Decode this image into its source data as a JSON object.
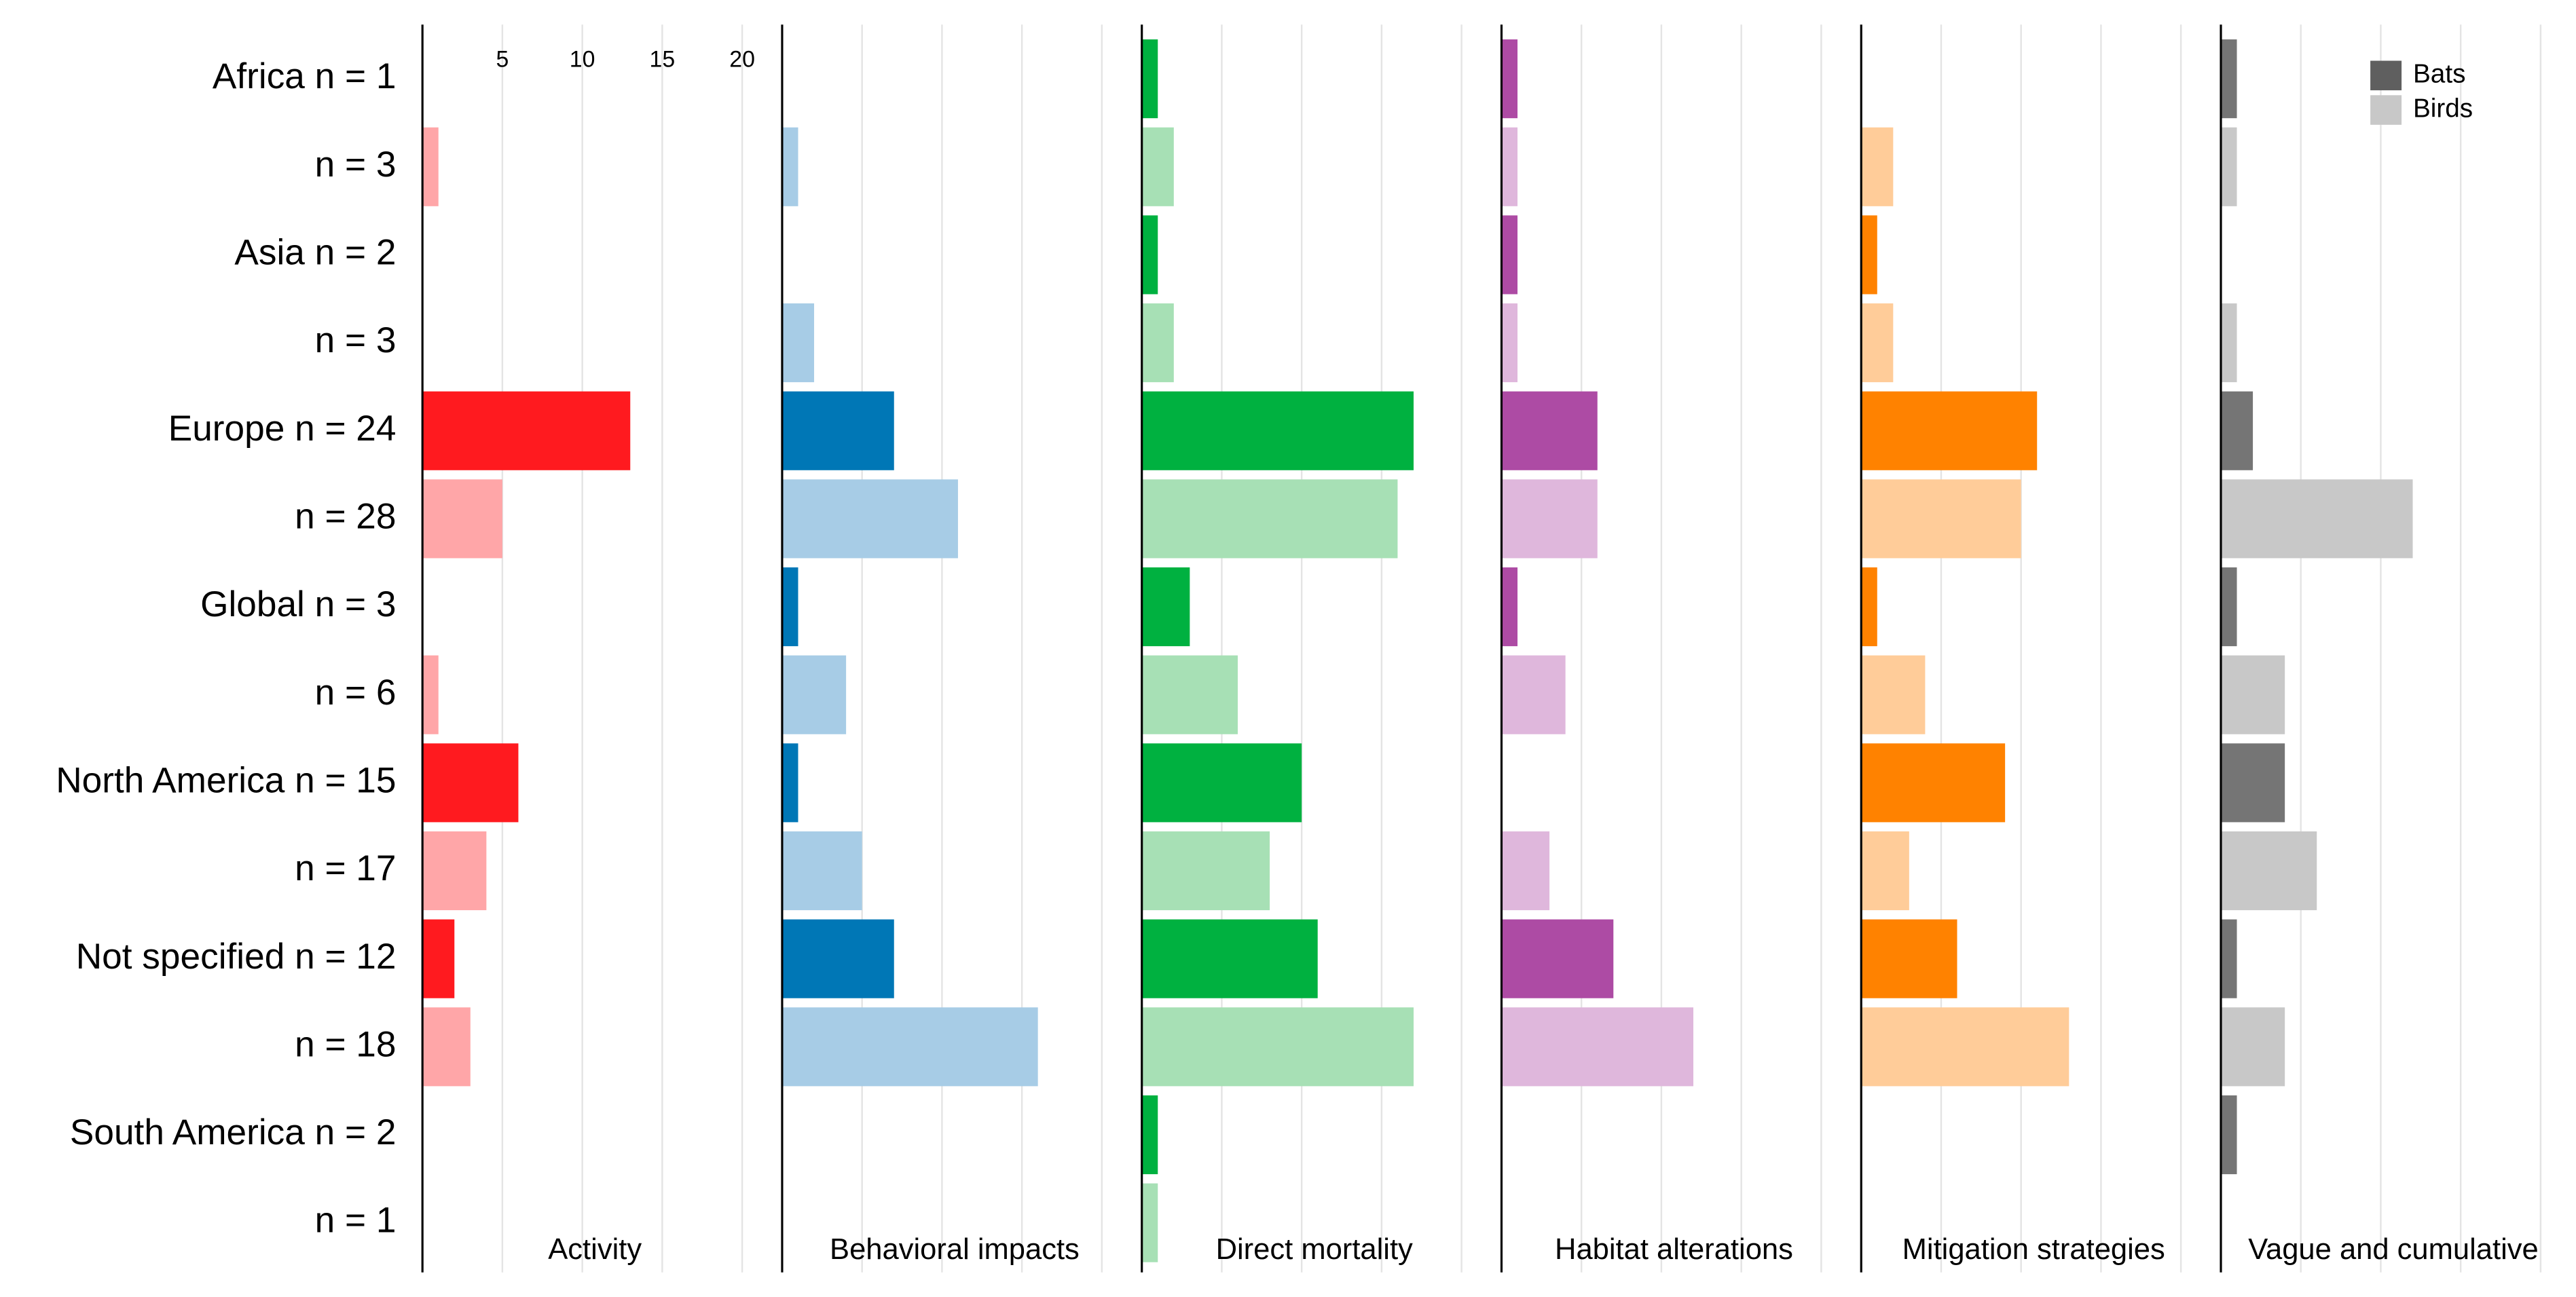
{
  "chart_data": {
    "type": "bar",
    "orientation": "horizontal",
    "categories": [
      "Africa n = 1",
      "n = 3",
      "Asia n = 2",
      "n = 3",
      "Europe n = 24",
      "n = 28",
      "Global n = 3",
      "n = 6",
      "North America n = 15",
      "n = 17",
      "Not specified n = 12",
      "n = 18",
      "South America n = 2",
      "n = 1"
    ],
    "xlim": [
      0,
      22.5
    ],
    "xticks": [
      5,
      10,
      15,
      20
    ],
    "grid": true,
    "legend_position": "upper right",
    "legend": [
      {
        "name": "Bats",
        "color": "#5f5f5f"
      },
      {
        "name": "Birds",
        "color": "#c8c8c8"
      }
    ],
    "panels": [
      {
        "name": "Activity",
        "colors": [
          "#ff1a1f",
          "#ffa6a8"
        ],
        "values": [
          null,
          1,
          null,
          null,
          13,
          5,
          null,
          1,
          6,
          4,
          2,
          3,
          null,
          null
        ]
      },
      {
        "name": "Behavioral impacts",
        "colors": [
          "#0077b6",
          "#a7cce6"
        ],
        "values": [
          null,
          1,
          null,
          2,
          7,
          11,
          1,
          4,
          1,
          5,
          7,
          16,
          null,
          null
        ]
      },
      {
        "name": "Direct mortality",
        "colors": [
          "#00b140",
          "#a7e0b5"
        ],
        "values": [
          1,
          2,
          1,
          2,
          17,
          16,
          3,
          6,
          10,
          8,
          11,
          17,
          1,
          1
        ]
      },
      {
        "name": "Habitat alterations",
        "colors": [
          "#ad4ba4",
          "#dfb7dc"
        ],
        "values": [
          1,
          1,
          1,
          1,
          6,
          6,
          1,
          4,
          null,
          3,
          7,
          12,
          null,
          null
        ]
      },
      {
        "name": "Mitigation strategies",
        "colors": [
          "#ff8200",
          "#ffcc99"
        ],
        "values": [
          null,
          2,
          1,
          2,
          11,
          10,
          1,
          4,
          9,
          3,
          6,
          13,
          null,
          null
        ]
      },
      {
        "name": "Vague and cumulative",
        "colors": [
          "#757575",
          "#c8c8c8"
        ],
        "values": [
          1,
          1,
          null,
          1,
          2,
          12,
          1,
          4,
          4,
          6,
          1,
          4,
          1,
          null
        ]
      }
    ]
  }
}
